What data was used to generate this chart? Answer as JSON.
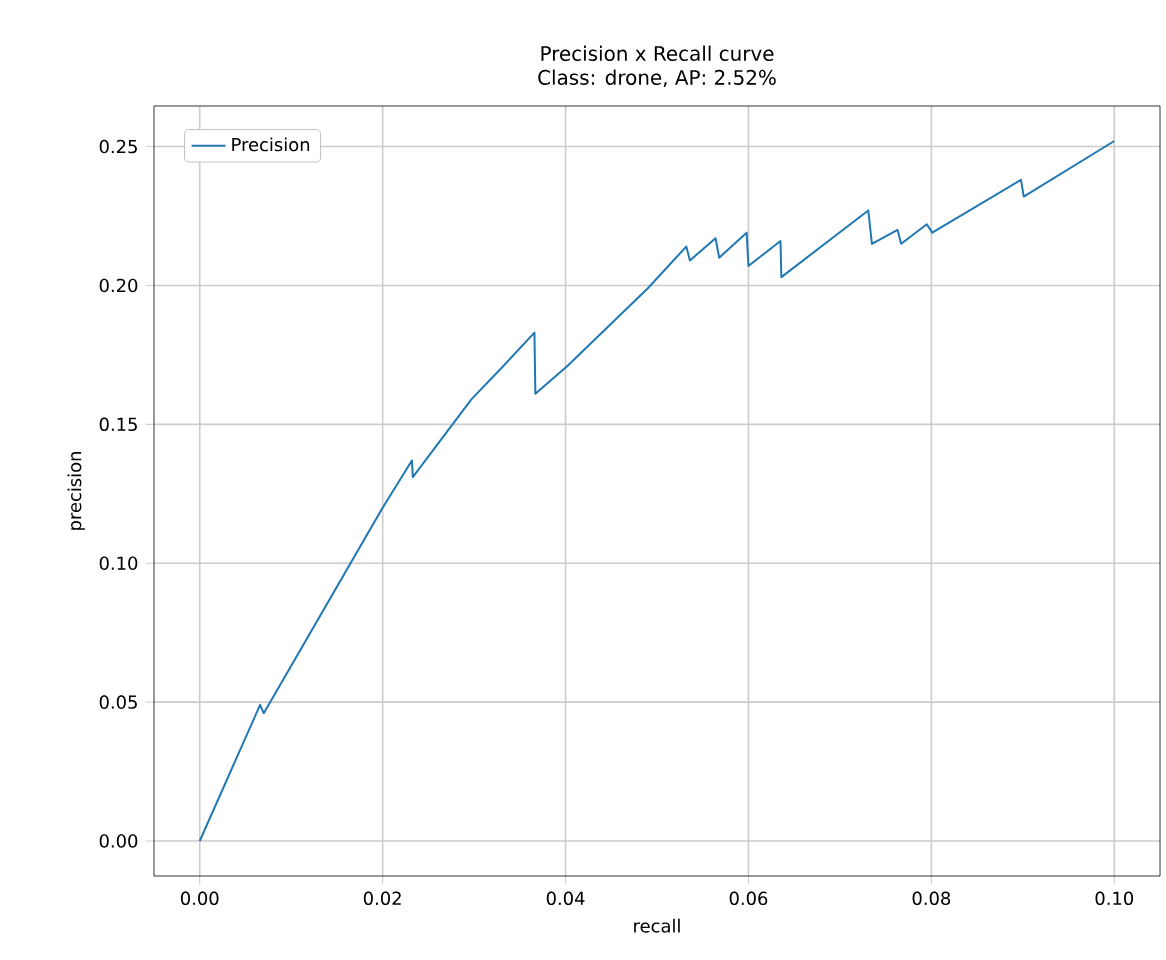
{
  "chart_data": {
    "type": "line",
    "title": "Precision x Recall curve",
    "subtitle": "Class: drone, AP: 2.52%",
    "xlabel": "recall",
    "ylabel": "precision",
    "x": [
      0,
      0.0066,
      0.007,
      0.02,
      0.0232,
      0.0233,
      0.0297,
      0.0332,
      0.0366,
      0.0367,
      0.0402,
      0.049,
      0.0532,
      0.0536,
      0.0564,
      0.0568,
      0.0598,
      0.06,
      0.0635,
      0.0636,
      0.0731,
      0.0735,
      0.0763,
      0.0767,
      0.0795,
      0.0801,
      0.0898,
      0.0901,
      0.1
    ],
    "series": [
      {
        "name": "Precision",
        "color": "#1f77b4",
        "values": [
          0,
          0.049,
          0.046,
          0.12,
          0.137,
          0.131,
          0.159,
          0.171,
          0.183,
          0.161,
          0.171,
          0.199,
          0.214,
          0.209,
          0.217,
          0.21,
          0.219,
          0.207,
          0.216,
          0.203,
          0.227,
          0.215,
          0.22,
          0.215,
          0.222,
          0.219,
          0.238,
          0.232,
          0.252
        ]
      }
    ],
    "xlim": [
      -0.005,
      0.105
    ],
    "ylim": [
      -0.0126,
      0.2646
    ],
    "xticks": [
      {
        "value": 0,
        "label": "0.00"
      },
      {
        "value": 0.02,
        "label": "0.02"
      },
      {
        "value": 0.04,
        "label": "0.04"
      },
      {
        "value": 0.06,
        "label": "0.06"
      },
      {
        "value": 0.08,
        "label": "0.08"
      },
      {
        "value": 0.1,
        "label": "0.10"
      }
    ],
    "yticks": [
      {
        "value": 0,
        "label": "0.00"
      },
      {
        "value": 0.05,
        "label": "0.05"
      },
      {
        "value": 0.1,
        "label": "0.10"
      },
      {
        "value": 0.15,
        "label": "0.15"
      },
      {
        "value": 0.2,
        "label": "0.20"
      },
      {
        "value": 0.25,
        "label": "0.25"
      }
    ],
    "grid": true,
    "legend": "top left",
    "marker": "none",
    "line_style": "solid"
  }
}
